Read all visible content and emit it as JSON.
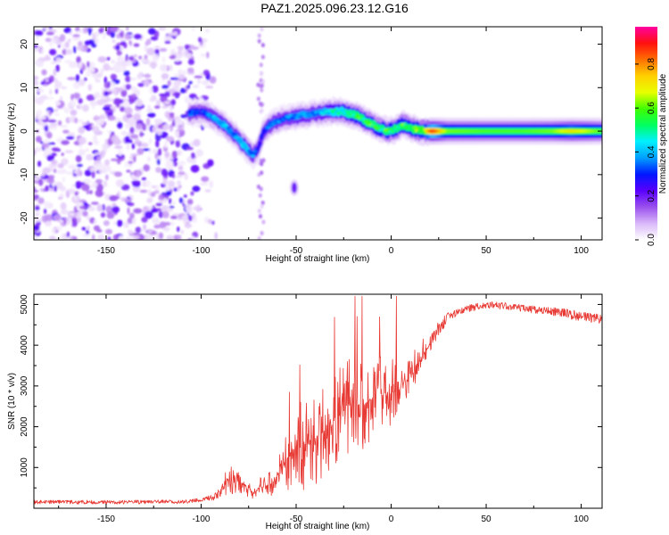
{
  "title": "PAZ1.2025.096.23.12.G16",
  "colors": {
    "snr_line": "#e83a34",
    "colormap": [
      "#ffffff",
      "#d9b8f8",
      "#9a50ee",
      "#5a00ff",
      "#0018ff",
      "#00a0ff",
      "#00f0ff",
      "#00ff60",
      "#40ff00",
      "#e8ff00",
      "#ffd000",
      "#ff7000",
      "#ff1010",
      "#ff00a0"
    ]
  },
  "chart_data": [
    {
      "type": "heatmap",
      "xlabel": "Height of straight line (km)",
      "ylabel": "Frequency (Hz)",
      "xlim": [
        -188,
        111
      ],
      "ylim": [
        -25,
        24
      ],
      "xticks": [
        -150,
        -100,
        -50,
        0,
        50,
        100
      ],
      "yticks": [
        -20,
        -10,
        0,
        10,
        20
      ],
      "colorbar": {
        "label": "Normalized spectral amplitude",
        "range": [
          0,
          0.97
        ],
        "ticks": [
          0.0,
          0.2,
          0.4,
          0.6,
          0.8
        ]
      },
      "ridge": [
        {
          "x": -106,
          "f": 4.0,
          "a": 0.35
        },
        {
          "x": -100,
          "f": 4.5,
          "a": 0.3
        },
        {
          "x": -95,
          "f": 3.5,
          "a": 0.4
        },
        {
          "x": -88,
          "f": 1.5,
          "a": 0.45
        },
        {
          "x": -82,
          "f": -1.0,
          "a": 0.4
        },
        {
          "x": -77,
          "f": -3.5,
          "a": 0.5
        },
        {
          "x": -73,
          "f": -5.5,
          "a": 0.4
        },
        {
          "x": -70,
          "f": -4.0,
          "a": 0.3
        },
        {
          "x": -67,
          "f": 0.0,
          "a": 0.35
        },
        {
          "x": -62,
          "f": 2.0,
          "a": 0.4
        },
        {
          "x": -56,
          "f": 3.0,
          "a": 0.35
        },
        {
          "x": -48,
          "f": 3.5,
          "a": 0.45
        },
        {
          "x": -40,
          "f": 4.0,
          "a": 0.4
        },
        {
          "x": -32,
          "f": 4.5,
          "a": 0.5
        },
        {
          "x": -25,
          "f": 4.5,
          "a": 0.55
        },
        {
          "x": -18,
          "f": 3.5,
          "a": 0.6
        },
        {
          "x": -12,
          "f": 2.0,
          "a": 0.6
        },
        {
          "x": -6,
          "f": 0.5,
          "a": 0.6
        },
        {
          "x": 0,
          "f": 0.0,
          "a": 0.6
        },
        {
          "x": 6,
          "f": 1.5,
          "a": 0.62
        },
        {
          "x": 12,
          "f": 0.5,
          "a": 0.65
        },
        {
          "x": 18,
          "f": 0.0,
          "a": 0.7
        },
        {
          "x": 22,
          "f": 0.0,
          "a": 0.9
        },
        {
          "x": 30,
          "f": 0.0,
          "a": 0.62
        },
        {
          "x": 50,
          "f": 0.0,
          "a": 0.6
        },
        {
          "x": 70,
          "f": 0.0,
          "a": 0.6
        },
        {
          "x": 85,
          "f": 0.0,
          "a": 0.62
        },
        {
          "x": 95,
          "f": 0.0,
          "a": 0.72
        },
        {
          "x": 111,
          "f": 0.0,
          "a": 0.6
        }
      ]
    },
    {
      "type": "line",
      "xlabel": "Height of straight line (km)",
      "ylabel": "SNR (10 * v/v)",
      "xlim": [
        -188,
        111
      ],
      "ylim": [
        0,
        5250
      ],
      "xticks": [
        -150,
        -100,
        -50,
        0,
        50,
        100
      ],
      "yticks": [
        1000,
        2000,
        3000,
        4000,
        5000
      ],
      "series": [
        {
          "x": [
            -188,
            -150,
            -110,
            -100,
            -92,
            -87,
            -85,
            -80,
            -75,
            -72,
            -70,
            -65,
            -60,
            -56,
            -52,
            -48,
            -44,
            -40,
            -35,
            -30,
            -25,
            -20,
            -15,
            -10,
            -5,
            0,
            5,
            10,
            15,
            20,
            25,
            30,
            35,
            40,
            45,
            50,
            60,
            70,
            80,
            90,
            95,
            100,
            111
          ],
          "y": [
            150,
            150,
            160,
            200,
            300,
            600,
            700,
            650,
            500,
            350,
            500,
            550,
            700,
            1100,
            1400,
            1600,
            1500,
            1700,
            2000,
            2200,
            2400,
            2600,
            2500,
            2700,
            2900,
            2800,
            3000,
            3200,
            3600,
            4000,
            4400,
            4700,
            4800,
            4900,
            4950,
            5000,
            4950,
            4900,
            4850,
            4800,
            4750,
            4700,
            4650
          ],
          "spread": [
            80,
            80,
            80,
            80,
            150,
            400,
            500,
            400,
            300,
            200,
            300,
            400,
            600,
            900,
            1200,
            1600,
            1400,
            1500,
            1500,
            1500,
            1500,
            1500,
            1400,
            1300,
            1200,
            1100,
            900,
            800,
            600,
            400,
            300,
            200,
            150,
            150,
            150,
            150,
            150,
            150,
            150,
            180,
            200,
            200,
            200
          ]
        }
      ]
    }
  ]
}
